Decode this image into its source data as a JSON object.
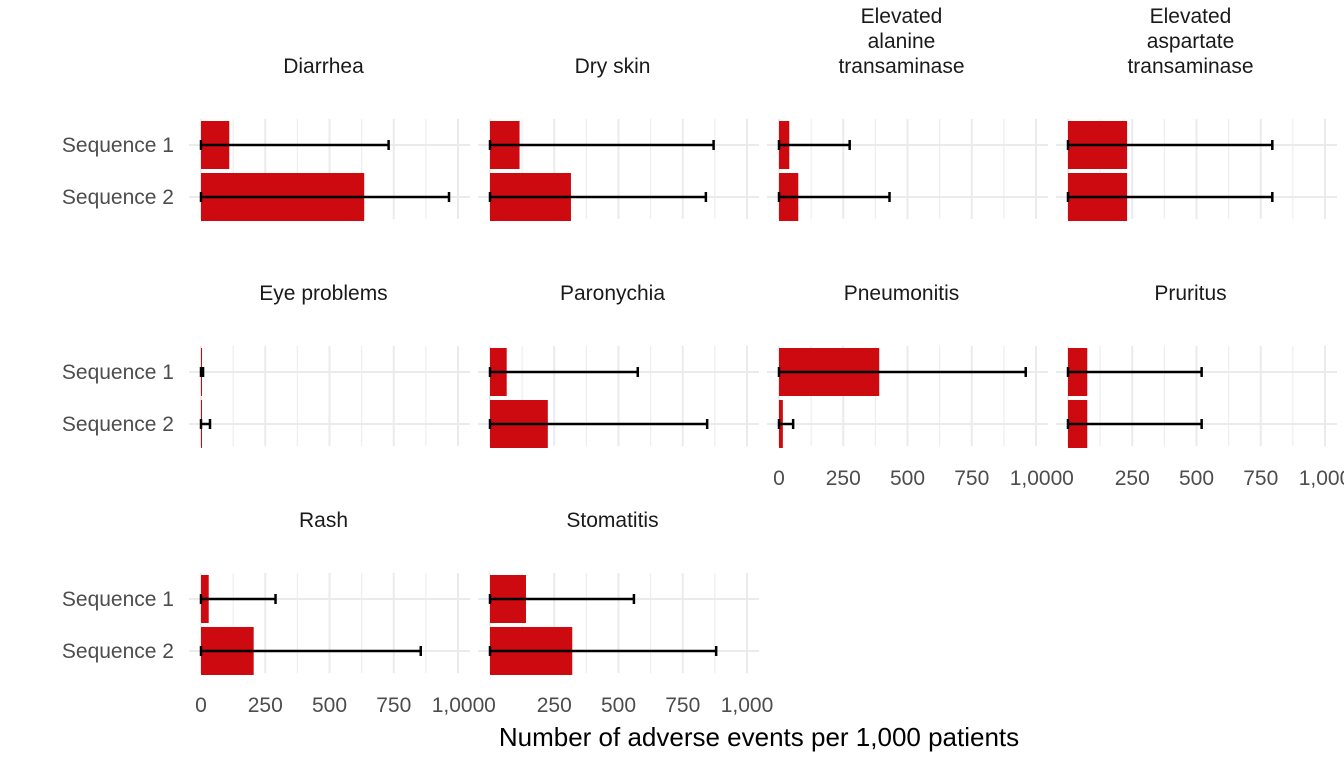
{
  "chart_data": {
    "type": "bar",
    "xlabel": "Number of adverse events per 1,000 patients",
    "ylabel": "",
    "xlim": [
      0,
      1000
    ],
    "x_ticks": [
      0,
      250,
      500,
      750,
      1000
    ],
    "x_tick_labels": [
      "0",
      "250",
      "500",
      "750",
      "1,000"
    ],
    "categories": [
      "Sequence 1",
      "Sequence 2"
    ],
    "grid": true,
    "bar_color": "#cc0a10",
    "error_bar_color": "#000000",
    "panels": [
      {
        "title": [
          "Diarrhea"
        ],
        "values": [
          110,
          635
        ],
        "error_low": [
          0,
          0
        ],
        "error_high": [
          730,
          965
        ]
      },
      {
        "title": [
          "Dry skin"
        ],
        "values": [
          115,
          315
        ],
        "error_low": [
          0,
          0
        ],
        "error_high": [
          870,
          840
        ]
      },
      {
        "title": [
          "Elevated",
          "alanine",
          "transaminase"
        ],
        "values": [
          40,
          75
        ],
        "error_low": [
          0,
          0
        ],
        "error_high": [
          275,
          430
        ]
      },
      {
        "title": [
          "Elevated",
          "aspartate",
          "transaminase"
        ],
        "values": [
          230,
          230
        ],
        "error_low": [
          0,
          0
        ],
        "error_high": [
          795,
          795
        ]
      },
      {
        "title": [
          "Eye problems"
        ],
        "values": [
          4,
          2
        ],
        "error_low": [
          0,
          0
        ],
        "error_high": [
          8,
          35
        ]
      },
      {
        "title": [
          "Paronychia"
        ],
        "values": [
          65,
          225
        ],
        "error_low": [
          0,
          0
        ],
        "error_high": [
          575,
          845
        ]
      },
      {
        "title": [
          "Pneumonitis"
        ],
        "values": [
          390,
          15
        ],
        "error_low": [
          0,
          0
        ],
        "error_high": [
          960,
          55
        ]
      },
      {
        "title": [
          "Pruritus"
        ],
        "values": [
          75,
          75
        ],
        "error_low": [
          0,
          0
        ],
        "error_high": [
          520,
          520
        ]
      },
      {
        "title": [
          "Rash"
        ],
        "values": [
          30,
          205
        ],
        "error_low": [
          0,
          0
        ],
        "error_high": [
          290,
          855
        ]
      },
      {
        "title": [
          "Stomatitis"
        ],
        "values": [
          140,
          320
        ],
        "error_low": [
          0,
          0
        ],
        "error_high": [
          560,
          880
        ]
      }
    ]
  }
}
